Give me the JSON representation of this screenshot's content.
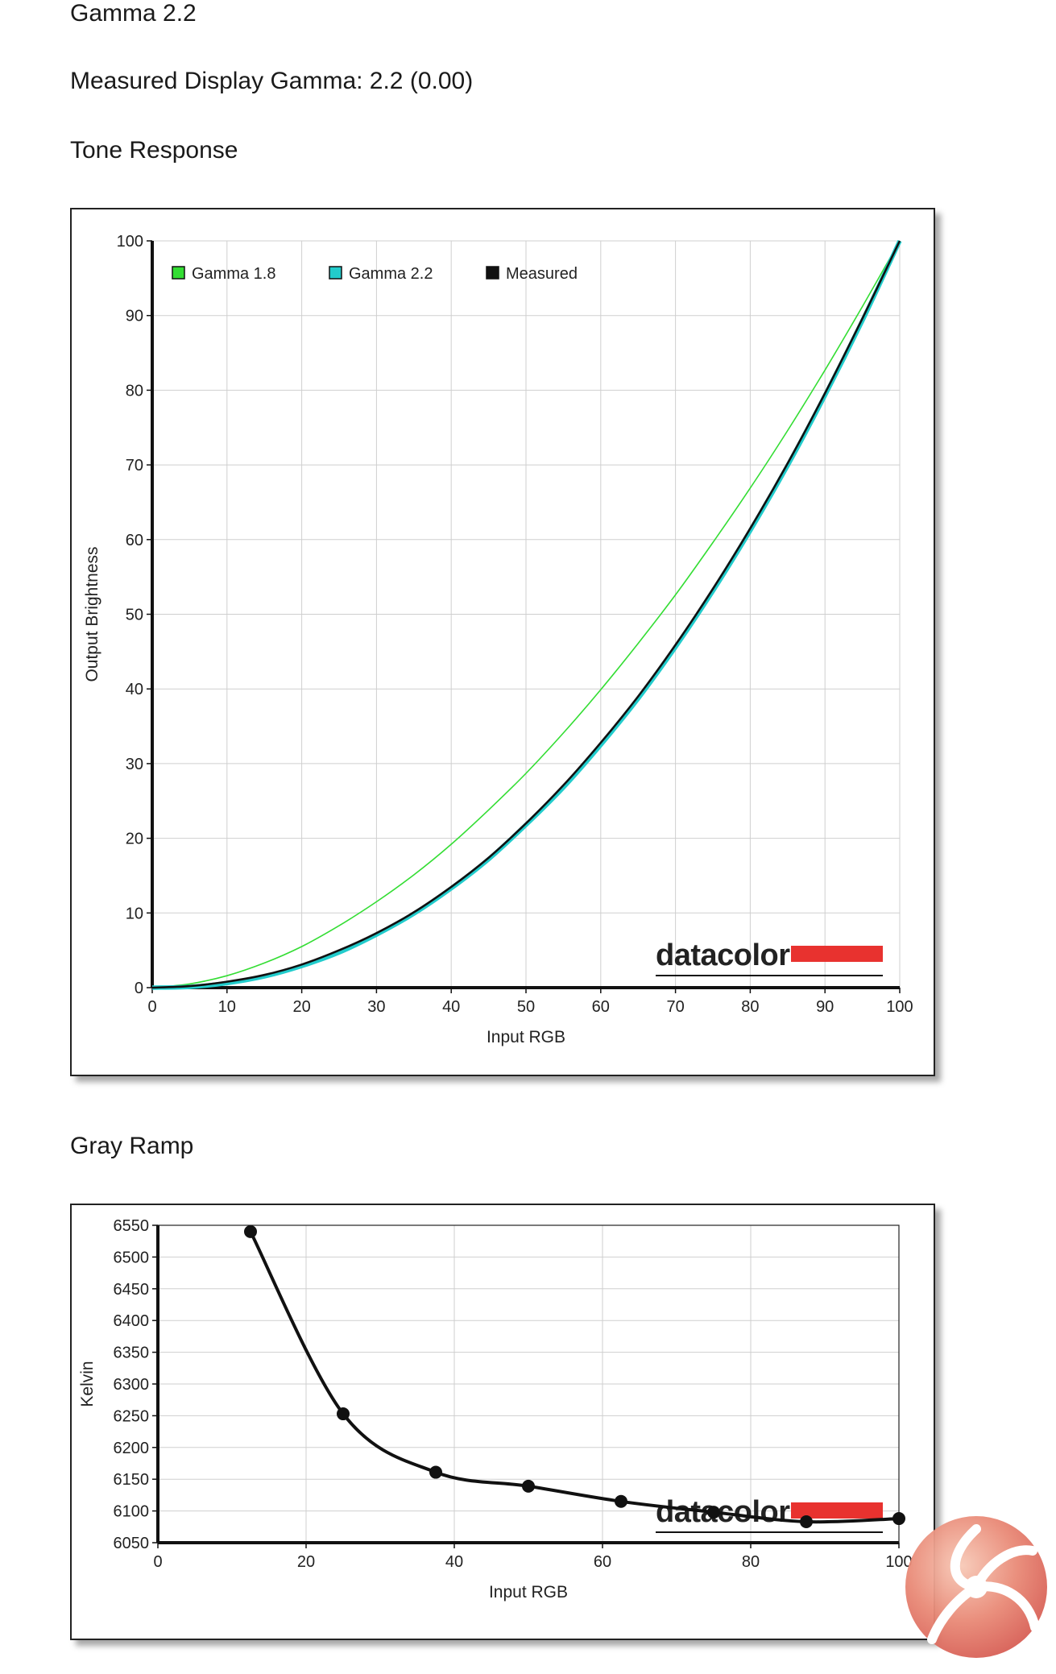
{
  "page": {
    "heading": "Gamma 2.2",
    "measured_line": "Measured Display Gamma: 2.2 (0.00)",
    "tone_title": "Tone Response",
    "gray_title": "Gray Ramp",
    "watermark_logo": "kitguru-logo"
  },
  "chart_data": [
    {
      "type": "line",
      "title": "Tone Response",
      "xlabel": "Input RGB",
      "ylabel": "Output Brightness",
      "xlim": [
        0,
        100
      ],
      "ylim": [
        0,
        100
      ],
      "xticks": [
        0,
        10,
        20,
        30,
        40,
        50,
        60,
        70,
        80,
        90,
        100
      ],
      "yticks": [
        0,
        10,
        20,
        30,
        40,
        50,
        60,
        70,
        80,
        90,
        100
      ],
      "grid": true,
      "legend_position": "top-left",
      "brand_logo": "datacolor",
      "series": [
        {
          "name": "Gamma 1.8",
          "color": "#33dd33",
          "marker": "none",
          "x": [
            0,
            5,
            10,
            15,
            20,
            25,
            30,
            35,
            40,
            45,
            50,
            55,
            60,
            65,
            70,
            75,
            80,
            85,
            90,
            95,
            100
          ],
          "y": [
            0,
            0.5,
            1.6,
            3.3,
            5.5,
            8.3,
            11.5,
            15.1,
            19.2,
            23.8,
            28.7,
            34.1,
            39.9,
            46.1,
            52.6,
            59.6,
            66.9,
            74.6,
            82.7,
            91.2,
            100
          ]
        },
        {
          "name": "Gamma 2.2",
          "color": "#22cccc",
          "marker": "none",
          "x": [
            0,
            5,
            10,
            15,
            20,
            25,
            30,
            35,
            40,
            45,
            50,
            55,
            60,
            65,
            70,
            75,
            80,
            85,
            90,
            95,
            100
          ],
          "y": [
            0,
            0.1,
            0.6,
            1.5,
            2.9,
            4.7,
            7.1,
            9.9,
            13.3,
            17.2,
            21.8,
            26.8,
            32.5,
            38.7,
            45.6,
            53.1,
            61.2,
            69.9,
            79.3,
            89.3,
            100
          ]
        },
        {
          "name": "Measured",
          "color": "#111111",
          "marker": "none",
          "x": [
            0,
            5,
            10,
            15,
            20,
            25,
            30,
            35,
            40,
            45,
            50,
            55,
            60,
            65,
            70,
            75,
            80,
            85,
            90,
            95,
            100
          ],
          "y": [
            0,
            0.2,
            0.8,
            1.7,
            3.1,
            5.0,
            7.3,
            10.1,
            13.5,
            17.4,
            22.0,
            27.1,
            32.8,
            39.0,
            45.9,
            53.4,
            61.5,
            70.2,
            79.6,
            89.6,
            100
          ]
        }
      ]
    },
    {
      "type": "line",
      "title": "Gray Ramp",
      "xlabel": "Input RGB",
      "ylabel": "Kelvin",
      "xlim": [
        0,
        100
      ],
      "ylim": [
        6050,
        6550
      ],
      "xticks": [
        0,
        20,
        40,
        60,
        80,
        100
      ],
      "yticks": [
        6050,
        6100,
        6150,
        6200,
        6250,
        6300,
        6350,
        6400,
        6450,
        6500,
        6550
      ],
      "grid": true,
      "brand_logo": "datacolor",
      "series": [
        {
          "color": "#111111",
          "marker": "circle",
          "x": [
            12.5,
            25,
            37.5,
            50,
            62.5,
            75,
            87.5,
            100
          ],
          "y": [
            6540,
            6253,
            6161,
            6139,
            6115,
            6098,
            6083,
            6088
          ]
        }
      ]
    }
  ]
}
